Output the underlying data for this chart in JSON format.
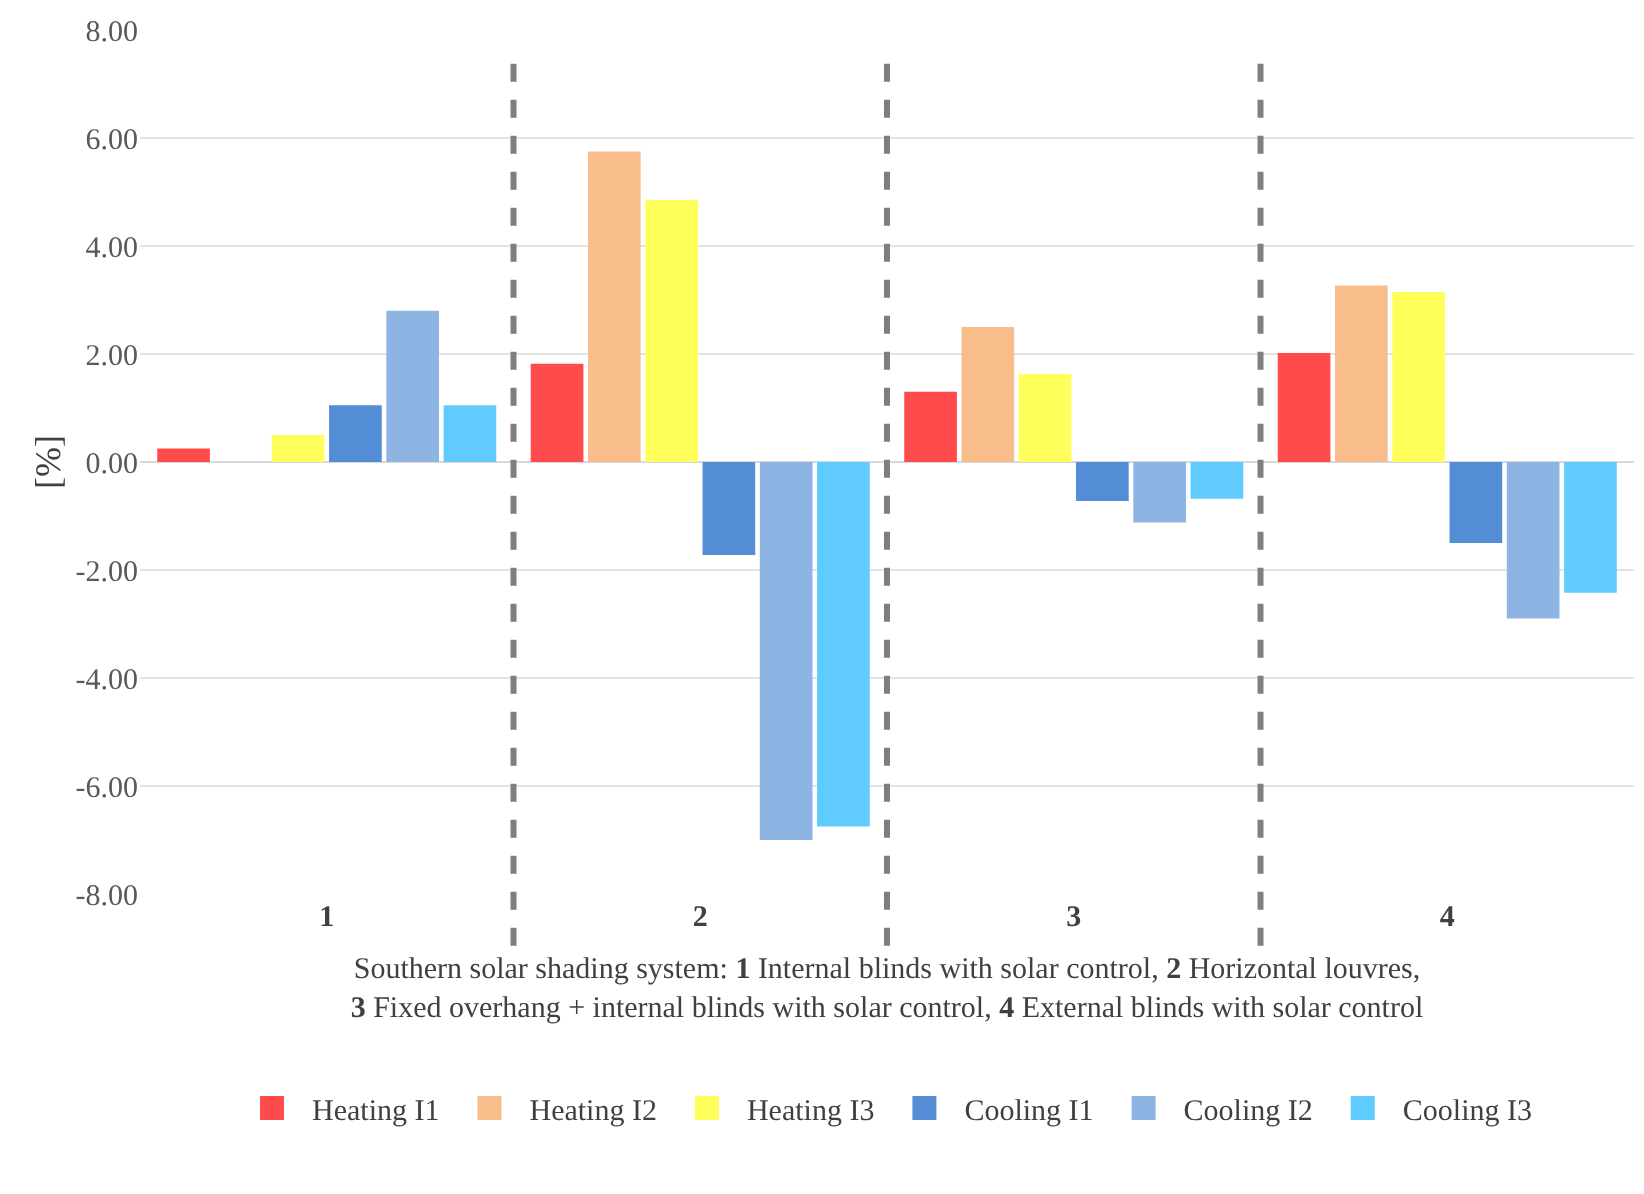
{
  "chart_data": {
    "type": "bar",
    "ylabel": "[%]",
    "xlabel": "Southern solar shading system: 1 Internal blinds with solar control, 2 Horizontal louvres,\n3 Fixed overhang + internal blinds with solar control, 4 External blinds with solar control",
    "categories": [
      "1",
      "2",
      "3",
      "4"
    ],
    "series": [
      {
        "name": "Heating I1",
        "color": "#ff4b4b",
        "values": [
          0.25,
          1.82,
          1.3,
          2.02
        ]
      },
      {
        "name": "Heating I2",
        "color": "#f8bd8a",
        "values": [
          0,
          5.75,
          2.5,
          3.27
        ]
      },
      {
        "name": "Heating I3",
        "color": "#ffff5c",
        "values": [
          0.5,
          4.85,
          1.63,
          3.15
        ]
      },
      {
        "name": "Cooling I1",
        "color": "#538dd5",
        "values": [
          1.05,
          -1.72,
          -0.72,
          -1.5
        ]
      },
      {
        "name": "Cooling I2",
        "color": "#8eb4e3",
        "values": [
          2.8,
          -7.0,
          -1.12,
          -2.9
        ]
      },
      {
        "name": "Cooling I3",
        "color": "#5fcbff",
        "values": [
          1.05,
          -6.75,
          -0.68,
          -2.42
        ]
      }
    ],
    "ylim": [
      -8,
      8
    ],
    "yticks": [
      {
        "value": -8,
        "label": "-8.00"
      },
      {
        "value": -6,
        "label": "-6.00"
      },
      {
        "value": -4,
        "label": "-4.00"
      },
      {
        "value": -2,
        "label": "-2.00"
      },
      {
        "value": 0,
        "label": "0.00"
      },
      {
        "value": 2,
        "label": "2.00"
      },
      {
        "value": 4,
        "label": "4.00"
      },
      {
        "value": 6,
        "label": "6.00"
      },
      {
        "value": 8,
        "label": "8.00"
      }
    ],
    "grid": "y",
    "legend": "bottom"
  }
}
